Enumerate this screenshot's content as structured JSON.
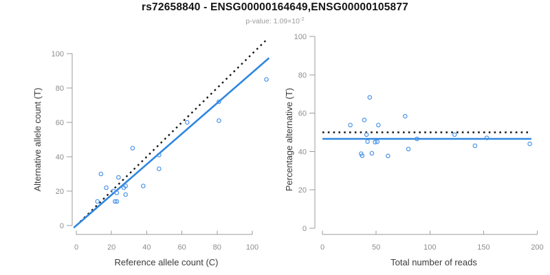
{
  "header": {
    "title": "rs72658840 - ENSG00000164649,ENSG00000105877",
    "pvalue_label": "p-value:",
    "pvalue_mantissa": "1.09×10",
    "pvalue_exponent": "-2"
  },
  "colors": {
    "background": "#ffffff",
    "point_blue": "#4a94e8",
    "line_blue": "#2e86e0",
    "dotted_black": "#141414",
    "axis_gray": "#9b9b9b",
    "tick_label_gray": "#8c8c8c",
    "axis_title_gray": "#3a3a3a",
    "title_black": "#141414",
    "subtitle_gray": "#9b9b9b"
  },
  "chart_data": [
    {
      "type": "scatter",
      "name": "allele-counts",
      "xlabel": "Reference allele count (C)",
      "ylabel": "Alternative allele count (T)",
      "xticks": [
        0,
        20,
        40,
        60,
        80,
        100
      ],
      "yticks": [
        0,
        20,
        40,
        60,
        80,
        100
      ],
      "xlim": [
        0,
        110
      ],
      "ylim": [
        0,
        112
      ],
      "grid": false,
      "legend": null,
      "points": [
        [
          12,
          14
        ],
        [
          22,
          14
        ],
        [
          23,
          14
        ],
        [
          17,
          22
        ],
        [
          21,
          20
        ],
        [
          23,
          19
        ],
        [
          14,
          30
        ],
        [
          28,
          18
        ],
        [
          27,
          22
        ],
        [
          28,
          23
        ],
        [
          24,
          28
        ],
        [
          38,
          23
        ],
        [
          32,
          45
        ],
        [
          47,
          33
        ],
        [
          47,
          41
        ],
        [
          63,
          60
        ],
        [
          81,
          61
        ],
        [
          81,
          72
        ],
        [
          108,
          85
        ]
      ],
      "identity_line": {
        "type": "dotted",
        "x1": 0,
        "y1": 0,
        "x2": 107.5,
        "y2": 107.5
      },
      "fit_line": {
        "type": "solid",
        "slope": 0.89,
        "intercept": 0,
        "x1": -1.5,
        "x2": 109.5
      }
    },
    {
      "type": "scatter",
      "name": "percentage-vs-depth",
      "xlabel": "Total number of reads",
      "ylabel": "Percentage alternative (T)",
      "xticks": [
        0,
        50,
        100,
        150,
        200
      ],
      "yticks": [
        0,
        20,
        40,
        60,
        80,
        100
      ],
      "xlim": [
        0,
        200
      ],
      "ylim": [
        0,
        100
      ],
      "grid": false,
      "legend": null,
      "points": [
        [
          26,
          53.8
        ],
        [
          36,
          38.9
        ],
        [
          37,
          37.8
        ],
        [
          39,
          56.4
        ],
        [
          41,
          48.8
        ],
        [
          42,
          45.2
        ],
        [
          44,
          68.2
        ],
        [
          46,
          39.1
        ],
        [
          49,
          44.9
        ],
        [
          51,
          45.1
        ],
        [
          52,
          53.8
        ],
        [
          61,
          37.7
        ],
        [
          77,
          58.4
        ],
        [
          80,
          41.3
        ],
        [
          88,
          46.6
        ],
        [
          123,
          48.8
        ],
        [
          142,
          43.0
        ],
        [
          153,
          47.1
        ],
        [
          193,
          44.0
        ]
      ],
      "expected_line": {
        "type": "dotted",
        "y": 50,
        "x1": 0,
        "x2": 194.5
      },
      "fit_line": {
        "type": "solid",
        "y": 46.6,
        "x1": 0,
        "x2": 194.5
      }
    }
  ]
}
